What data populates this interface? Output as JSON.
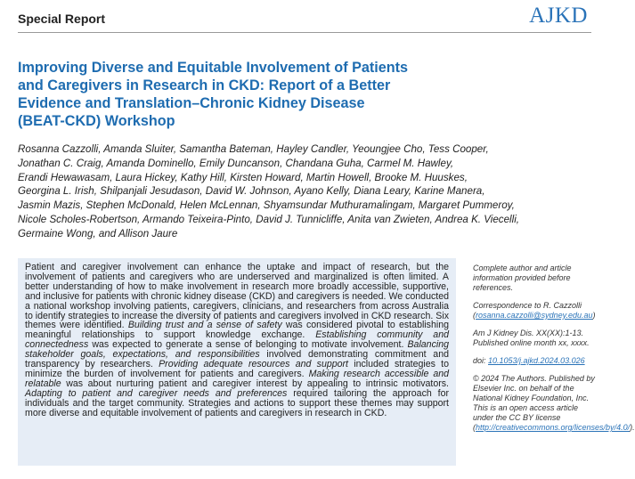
{
  "header": {
    "section": "Special Report",
    "journal": "AJKD"
  },
  "title_lines": [
    "Improving Diverse and Equitable Involvement of Patients",
    "and Caregivers in Research in CKD: Report of a Better",
    "Evidence and Translation–Chronic Kidney Disease",
    "(BEAT-CKD) Workshop"
  ],
  "author_lines": [
    "Rosanna Cazzolli, Amanda Sluiter, Samantha Bateman, Hayley Candler, Yeoungjee Cho, Tess Cooper,",
    "Jonathan C. Craig, Amanda Dominello, Emily Duncanson, Chandana Guha, Carmel M. Hawley,",
    "Erandi Hewawasam, Laura Hickey, Kathy Hill, Kirsten Howard, Martin Howell, Brooke M. Huuskes,",
    "Georgina L. Irish, Shilpanjali Jesudason, David W. Johnson, Ayano Kelly, Diana Leary, Karine Manera,",
    "Jasmin Mazis, Stephen McDonald, Helen McLennan, Shyamsundar Muthuramalingam, Margaret Pummeroy,",
    "Nicole Scholes-Robertson, Armando Teixeira-Pinto, David J. Tunnicliffe, Anita van Zwieten, Andrea K. Viecelli,",
    "Germaine Wong, and Allison Jaure"
  ],
  "abstract": [
    {
      "text": "Patient and caregiver involvement can enhance the uptake and impact of research, but the involvement of patients and caregivers who are underserved and marginalized is often limited. A better understanding of how to make involvement in research more broadly accessible, supportive, and inclusive for patients with chronic kidney disease (CKD) and caregivers is needed. We conducted a national workshop involving patients, caregivers, clinicians, and researchers from across Australia to identify strategies to increase the diversity of patients and caregivers involved in CKD research. Six themes were identified.",
      "italic": false
    },
    {
      "text": "Building trust and a sense of safety",
      "italic": true
    },
    {
      "text": "was considered pivotal to establishing meaningful relationships to support knowledge exchange.",
      "italic": false
    },
    {
      "text": "Establishing community and connectedness",
      "italic": true
    },
    {
      "text": "was expected to generate a sense of belonging to motivate involvement.",
      "italic": false
    },
    {
      "text": "Balancing stakeholder goals, expectations, and responsibilities",
      "italic": true
    },
    {
      "text": "involved demonstrating commitment and transparency by researchers.",
      "italic": false
    },
    {
      "text": "Providing adequate resources and support",
      "italic": true
    },
    {
      "text": "included strategies to minimize the burden of involvement for patients and caregivers.",
      "italic": false
    },
    {
      "text": "Making research accessible and relatable",
      "italic": true
    },
    {
      "text": "was about nurturing patient and caregiver interest by appealing to intrinsic motivators.",
      "italic": false
    },
    {
      "text": "Adapting to patient and caregiver needs and preferences",
      "italic": true
    },
    {
      "text": "required tailoring the approach for individuals and the target community. Strategies and actions to support these themes may support more diverse and equitable involvement of patients and caregivers in research in CKD.",
      "italic": false
    }
  ],
  "sidebar": [
    [
      {
        "text": "Complete author and article information provided before references."
      }
    ],
    [
      {
        "text": "Correspondence to R. Cazzolli ("
      },
      {
        "text": "rosanna.cazzolli@sydney.edu.au",
        "link": true
      },
      {
        "text": ")"
      }
    ],
    [
      {
        "text": "Am J Kidney Dis. XX(XX):1-13. Published online month xx, xxxx."
      }
    ],
    [
      {
        "text": "doi: "
      },
      {
        "text": "10.1053/j.ajkd.2024.03.026",
        "link": true
      }
    ],
    [
      {
        "text": "© 2024 The Authors. Published by Elsevier Inc. on behalf of the National Kidney Foundation, Inc. This is an open access article under the CC BY license ("
      },
      {
        "text": "http://creativecommons.org/licenses/by/4.0/",
        "link": true
      },
      {
        "text": ")."
      }
    ]
  ]
}
